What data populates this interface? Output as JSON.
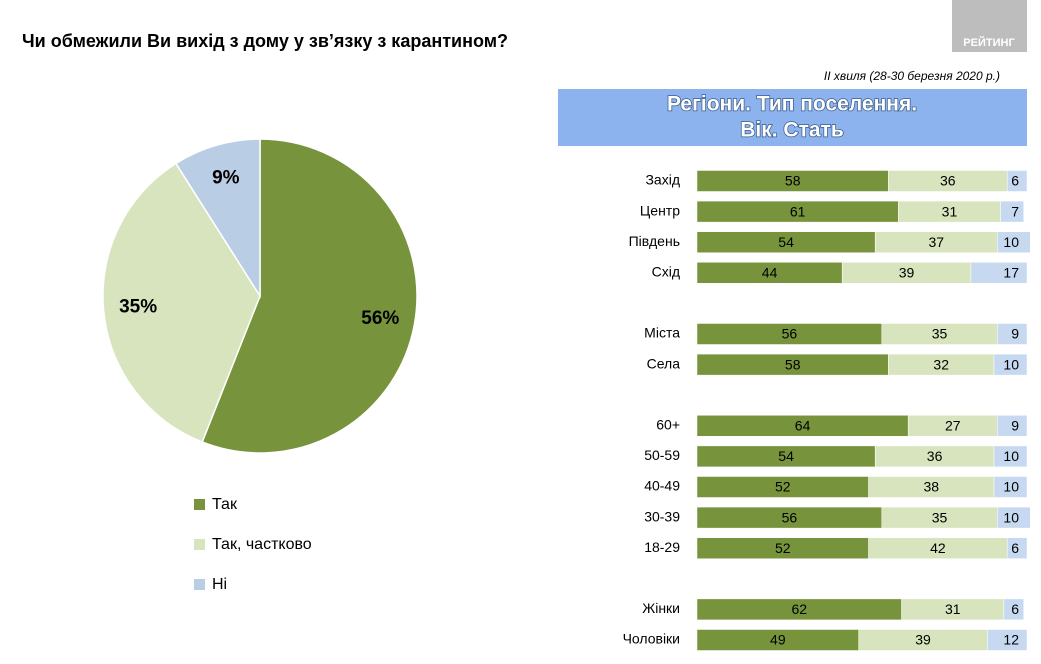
{
  "title": "Чи обмежили Ви вихід з дому у зв’язку з карантином?",
  "brand": "РЕЙТИНГ",
  "chart_data": [
    {
      "type": "pie",
      "categories": [
        "Так",
        "Так, частково",
        "Ні"
      ],
      "values": [
        56,
        35,
        9
      ],
      "value_labels": [
        "56%",
        "35%",
        "9%"
      ],
      "colors": [
        "#77933c",
        "#d7e4bd",
        "#b9cde5"
      ],
      "legend": "bottom-left"
    },
    {
      "type": "bar",
      "orientation": "horizontal",
      "stacked": true,
      "title": [
        "Регіони. Тип поселення.",
        "Вік. Стать"
      ],
      "subtitle": "ІІ хвиля (28-30 березня 2020 р.)",
      "categories": [
        "Захід",
        "Центр",
        "Південь",
        "Схід",
        null,
        "Міста",
        "Села",
        null,
        "60+",
        "50-59",
        "40-49",
        "30-39",
        "18-29",
        null,
        "Жінки",
        "Чоловіки"
      ],
      "series": [
        {
          "color": "#77933c",
          "values": [
            58,
            61,
            54,
            44,
            null,
            56,
            58,
            null,
            64,
            54,
            52,
            56,
            52,
            null,
            62,
            49
          ]
        },
        {
          "color": "#d7e4bd",
          "values": [
            36,
            31,
            37,
            39,
            null,
            35,
            32,
            null,
            27,
            36,
            38,
            35,
            42,
            null,
            31,
            39
          ]
        },
        {
          "color": "#c6d9f1",
          "values": [
            6,
            7,
            10,
            17,
            null,
            9,
            10,
            null,
            9,
            10,
            10,
            10,
            6,
            null,
            6,
            12
          ]
        }
      ],
      "xlim": [
        0,
        100
      ]
    }
  ]
}
